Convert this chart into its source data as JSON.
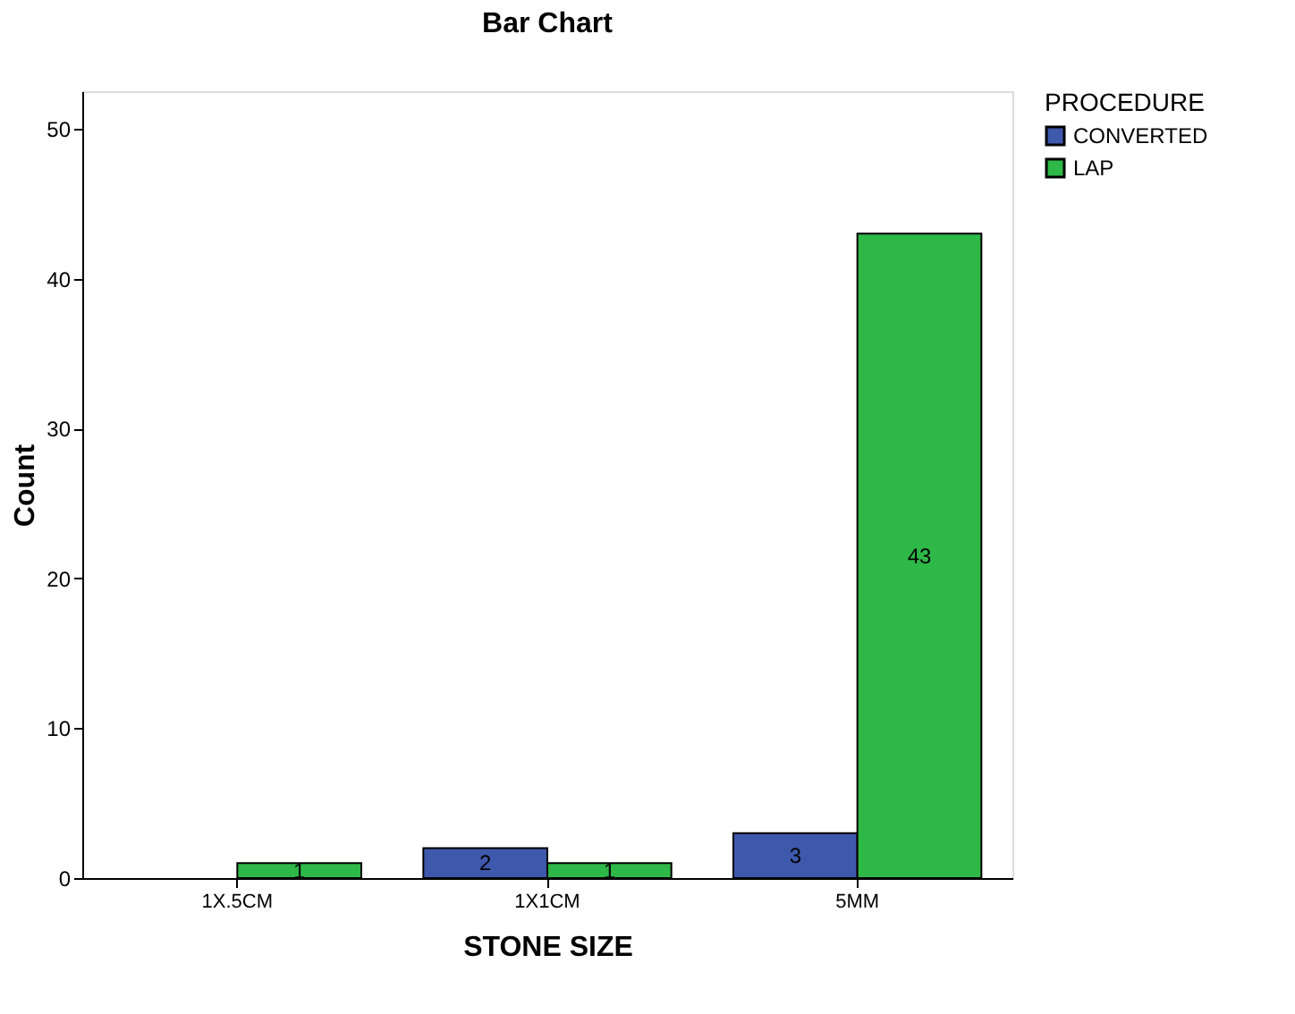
{
  "chart_data": {
    "type": "bar",
    "title": "Bar Chart",
    "xlabel": "STONE SIZE",
    "ylabel": "Count",
    "legend_title": "PROCEDURE",
    "categories": [
      "1X.5CM",
      "1X1CM",
      "5MM"
    ],
    "series": [
      {
        "name": "CONVERTED",
        "color": "#3e58ac",
        "values": [
          null,
          2,
          3
        ]
      },
      {
        "name": "LAP",
        "color": "#2eb848",
        "values": [
          1,
          1,
          43
        ]
      }
    ],
    "ylim": [
      0,
      52.5
    ],
    "yticks": [
      0,
      10,
      20,
      30,
      40,
      50
    ],
    "grid": false,
    "legend": "top right",
    "data_labels": true
  }
}
